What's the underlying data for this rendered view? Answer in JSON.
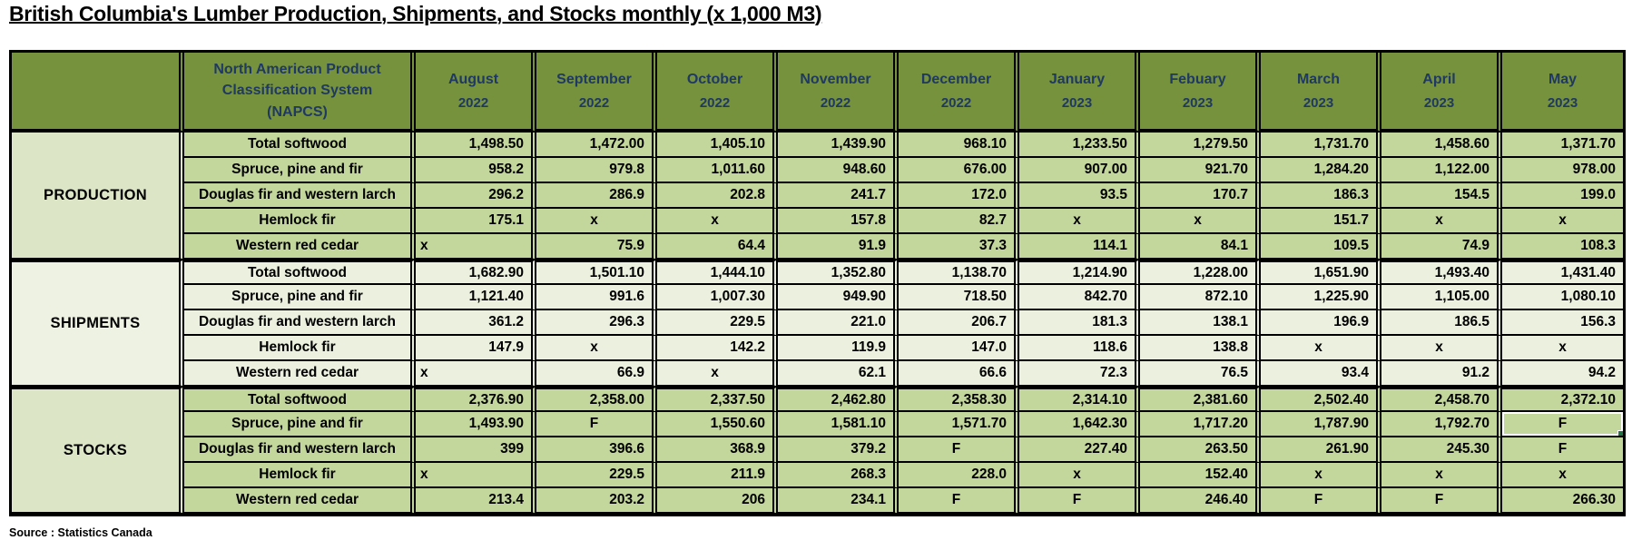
{
  "title": "British Columbia's Lumber Production, Shipments, and Stocks monthly (x 1,000 M3)",
  "source_note": "Source : Statistics Canada",
  "napcs_header": "North American Product\nClassification System\n(NAPCS)",
  "months": [
    {
      "name": "August",
      "year": "2022"
    },
    {
      "name": "September",
      "year": "2022"
    },
    {
      "name": "October",
      "year": "2022"
    },
    {
      "name": "November",
      "year": "2022"
    },
    {
      "name": "December",
      "year": "2022"
    },
    {
      "name": "January",
      "year": "2023"
    },
    {
      "name": "Febuary",
      "year": "2023"
    },
    {
      "name": "March",
      "year": "2023"
    },
    {
      "name": "April",
      "year": "2023"
    },
    {
      "name": "May",
      "year": "2023"
    }
  ],
  "sections": [
    {
      "label": "PRODUCTION",
      "rows": [
        {
          "label": "Total softwood",
          "values": [
            "1,498.50",
            "1,472.00",
            "1,405.10",
            "1,439.90",
            "968.10",
            "1,233.50",
            "1,279.50",
            "1,731.70",
            "1,458.60",
            "1,371.70"
          ]
        },
        {
          "label": "Spruce, pine and fir",
          "values": [
            "958.2",
            "979.8",
            "1,011.60",
            "948.60",
            "676.00",
            "907.00",
            "921.70",
            "1,284.20",
            "1,122.00",
            "978.00"
          ]
        },
        {
          "label": "Douglas fir and western larch",
          "values": [
            "296.2",
            "286.9",
            "202.8",
            "241.7",
            "172.0",
            "93.5",
            "170.7",
            "186.3",
            "154.5",
            "199.0"
          ]
        },
        {
          "label": "Hemlock fir",
          "values": [
            "175.1",
            "x",
            "x",
            "157.8",
            "82.7",
            "x",
            "x",
            "151.7",
            "x",
            "x"
          ]
        },
        {
          "label": "Western red cedar",
          "values": [
            "x",
            "75.9",
            "64.4",
            "91.9",
            "37.3",
            "114.1",
            "84.1",
            "109.5",
            "74.9",
            "108.3"
          ]
        }
      ]
    },
    {
      "label": "SHIPMENTS",
      "rows": [
        {
          "label": "Total softwood",
          "values": [
            "1,682.90",
            "1,501.10",
            "1,444.10",
            "1,352.80",
            "1,138.70",
            "1,214.90",
            "1,228.00",
            "1,651.90",
            "1,493.40",
            "1,431.40"
          ]
        },
        {
          "label": "Spruce, pine and fir",
          "values": [
            "1,121.40",
            "991.6",
            "1,007.30",
            "949.90",
            "718.50",
            "842.70",
            "872.10",
            "1,225.90",
            "1,105.00",
            "1,080.10"
          ]
        },
        {
          "label": "Douglas fir and western larch",
          "values": [
            "361.2",
            "296.3",
            "229.5",
            "221.0",
            "206.7",
            "181.3",
            "138.1",
            "196.9",
            "186.5",
            "156.3"
          ]
        },
        {
          "label": "Hemlock fir",
          "values": [
            "147.9",
            "x",
            "142.2",
            "119.9",
            "147.0",
            "118.6",
            "138.8",
            "x",
            "x",
            "x"
          ]
        },
        {
          "label": "Western red cedar",
          "values": [
            "x",
            "66.9",
            "x",
            "62.1",
            "66.6",
            "72.3",
            "76.5",
            "93.4",
            "91.2",
            "94.2"
          ]
        }
      ]
    },
    {
      "label": "STOCKS",
      "rows": [
        {
          "label": "Total softwood",
          "values": [
            "2,376.90",
            "2,358.00",
            "2,337.50",
            "2,462.80",
            "2,358.30",
            "2,314.10",
            "2,381.60",
            "2,502.40",
            "2,458.70",
            "2,372.10"
          ]
        },
        {
          "label": "Spruce, pine and fir",
          "values": [
            "1,493.90",
            "F",
            "1,550.60",
            "1,581.10",
            "1,571.70",
            "1,642.30",
            "1,717.20",
            "1,787.90",
            "1,792.70",
            "F"
          ]
        },
        {
          "label": "Douglas fir and western larch",
          "values": [
            "399",
            "396.6",
            "368.9",
            "379.2",
            "F",
            "227.40",
            "263.50",
            "261.90",
            "245.30",
            "F"
          ]
        },
        {
          "label": "Hemlock fir",
          "values": [
            "x",
            "229.5",
            "211.9",
            "268.3",
            "228.0",
            "x",
            "152.40",
            "x",
            "x",
            "x"
          ]
        },
        {
          "label": "Western red cedar",
          "values": [
            "213.4",
            "203.2",
            "206",
            "234.1",
            "F",
            "F",
            "246.40",
            "F",
            "F",
            "266.30"
          ]
        }
      ]
    }
  ],
  "selection": {
    "section_index": 2,
    "row_index": 1,
    "col_index": 9,
    "value": "F"
  },
  "colors": {
    "header_bg": "#76923C",
    "header_text": "#1F3864",
    "band_strong": "#C3D69B",
    "band_light": "#EBF1DE",
    "section_strong_bg": "#DCE6C6",
    "section_light_bg": "#EDF2E3",
    "section_text": "#FF2A12",
    "selection": "#217346",
    "border": "#000000"
  }
}
